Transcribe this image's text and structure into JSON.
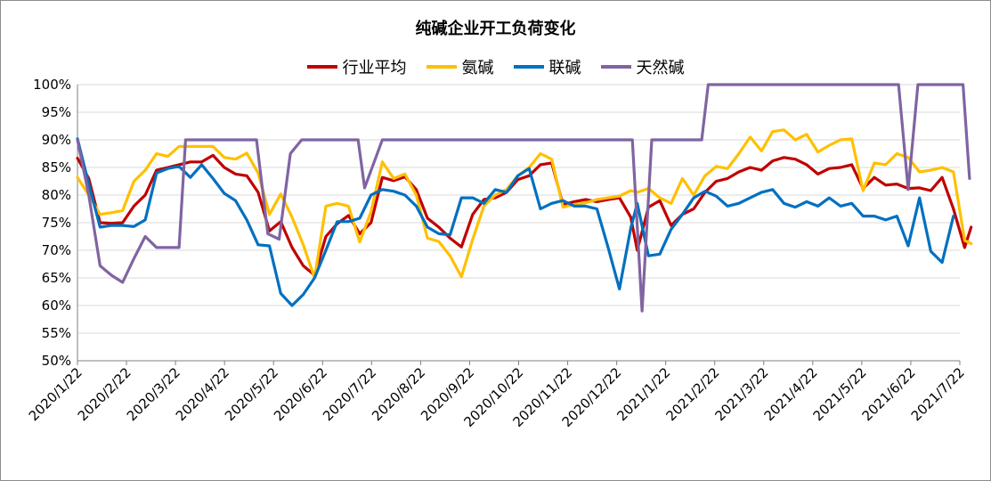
{
  "chart_data": {
    "type": "line",
    "title": "纯碱企业开工负荷变化",
    "xlabel": "",
    "ylabel": "",
    "ylim": [
      0.5,
      1.0
    ],
    "yticks": [
      "50%",
      "55%",
      "60%",
      "65%",
      "70%",
      "75%",
      "80%",
      "85%",
      "90%",
      "95%",
      "100%"
    ],
    "x_start": "2020-01-22",
    "x_end": "2021-07-22",
    "xticks": [
      "2020/1/22",
      "2020/2/22",
      "2020/3/22",
      "2020/4/22",
      "2020/5/22",
      "2020/6/22",
      "2020/7/22",
      "2020/8/22",
      "2020/9/22",
      "2020/10/22",
      "2020/11/22",
      "2020/12/22",
      "2021/1/22",
      "2021/2/22",
      "2021/3/22",
      "2021/4/22",
      "2021/5/22",
      "2021/6/22",
      "2021/7/22"
    ],
    "grid": true,
    "legend_position": "top",
    "series": [
      {
        "name": "行业平均",
        "color": "#c00000",
        "points": [
          [
            "2020-01-22",
            0.867
          ],
          [
            "2020-01-29",
            0.83
          ],
          [
            "2020-02-05",
            0.75
          ],
          [
            "2020-02-12",
            0.749
          ],
          [
            "2020-02-19",
            0.75
          ],
          [
            "2020-02-26",
            0.78
          ],
          [
            "2020-03-04",
            0.8
          ],
          [
            "2020-03-11",
            0.845
          ],
          [
            "2020-03-18",
            0.85
          ],
          [
            "2020-03-25",
            0.855
          ],
          [
            "2020-04-01",
            0.86
          ],
          [
            "2020-04-08",
            0.86
          ],
          [
            "2020-04-15",
            0.872
          ],
          [
            "2020-04-22",
            0.85
          ],
          [
            "2020-04-29",
            0.838
          ],
          [
            "2020-05-06",
            0.835
          ],
          [
            "2020-05-13",
            0.805
          ],
          [
            "2020-05-20",
            0.735
          ],
          [
            "2020-05-27",
            0.752
          ],
          [
            "2020-06-03",
            0.705
          ],
          [
            "2020-06-10",
            0.672
          ],
          [
            "2020-06-17",
            0.655
          ],
          [
            "2020-06-24",
            0.725
          ],
          [
            "2020-07-01",
            0.748
          ],
          [
            "2020-07-08",
            0.763
          ],
          [
            "2020-07-15",
            0.73
          ],
          [
            "2020-07-22",
            0.75
          ],
          [
            "2020-07-29",
            0.832
          ],
          [
            "2020-08-05",
            0.826
          ],
          [
            "2020-08-12",
            0.833
          ],
          [
            "2020-08-19",
            0.81
          ],
          [
            "2020-08-26",
            0.758
          ],
          [
            "2020-09-02",
            0.742
          ],
          [
            "2020-09-09",
            0.722
          ],
          [
            "2020-09-16",
            0.706
          ],
          [
            "2020-09-23",
            0.765
          ],
          [
            "2020-09-30",
            0.792
          ],
          [
            "2020-10-07",
            0.795
          ],
          [
            "2020-10-14",
            0.805
          ],
          [
            "2020-10-21",
            0.828
          ],
          [
            "2020-10-28",
            0.835
          ],
          [
            "2020-11-04",
            0.855
          ],
          [
            "2020-11-11",
            0.858
          ],
          [
            "2020-11-18",
            0.783
          ],
          [
            "2020-11-25",
            0.788
          ],
          [
            "2020-12-02",
            0.792
          ],
          [
            "2020-12-09",
            0.788
          ],
          [
            "2020-12-16",
            0.792
          ],
          [
            "2020-12-23",
            0.795
          ],
          [
            "2020-12-30",
            0.76
          ],
          [
            "2021-01-03",
            0.7
          ],
          [
            "2021-01-10",
            0.778
          ],
          [
            "2021-01-17",
            0.79
          ],
          [
            "2021-01-24",
            0.745
          ],
          [
            "2021-01-31",
            0.765
          ],
          [
            "2021-02-07",
            0.775
          ],
          [
            "2021-02-14",
            0.805
          ],
          [
            "2021-02-21",
            0.825
          ],
          [
            "2021-02-28",
            0.83
          ],
          [
            "2021-03-07",
            0.842
          ],
          [
            "2021-03-14",
            0.85
          ],
          [
            "2021-03-21",
            0.845
          ],
          [
            "2021-03-28",
            0.862
          ],
          [
            "2021-04-04",
            0.868
          ],
          [
            "2021-04-11",
            0.865
          ],
          [
            "2021-04-18",
            0.855
          ],
          [
            "2021-04-25",
            0.838
          ],
          [
            "2021-05-02",
            0.848
          ],
          [
            "2021-05-09",
            0.85
          ],
          [
            "2021-05-16",
            0.855
          ],
          [
            "2021-05-23",
            0.812
          ],
          [
            "2021-05-30",
            0.832
          ],
          [
            "2021-06-06",
            0.818
          ],
          [
            "2021-06-13",
            0.82
          ],
          [
            "2021-06-20",
            0.812
          ],
          [
            "2021-06-27",
            0.813
          ],
          [
            "2021-07-04",
            0.808
          ],
          [
            "2021-07-11",
            0.832
          ],
          [
            "2021-07-18",
            0.775
          ],
          [
            "2021-07-25",
            0.705
          ],
          [
            "2021-07-29",
            0.742
          ]
        ]
      },
      {
        "name": "氨碱",
        "color": "#ffc000",
        "points": [
          [
            "2020-01-22",
            0.832
          ],
          [
            "2020-01-29",
            0.8
          ],
          [
            "2020-02-05",
            0.765
          ],
          [
            "2020-02-12",
            0.768
          ],
          [
            "2020-02-19",
            0.772
          ],
          [
            "2020-02-26",
            0.825
          ],
          [
            "2020-03-04",
            0.845
          ],
          [
            "2020-03-11",
            0.875
          ],
          [
            "2020-03-18",
            0.87
          ],
          [
            "2020-03-25",
            0.888
          ],
          [
            "2020-04-01",
            0.888
          ],
          [
            "2020-04-08",
            0.888
          ],
          [
            "2020-04-15",
            0.888
          ],
          [
            "2020-04-22",
            0.868
          ],
          [
            "2020-04-29",
            0.865
          ],
          [
            "2020-05-06",
            0.876
          ],
          [
            "2020-05-13",
            0.84
          ],
          [
            "2020-05-20",
            0.765
          ],
          [
            "2020-05-27",
            0.802
          ],
          [
            "2020-06-03",
            0.76
          ],
          [
            "2020-06-10",
            0.71
          ],
          [
            "2020-06-17",
            0.65
          ],
          [
            "2020-06-24",
            0.78
          ],
          [
            "2020-07-01",
            0.785
          ],
          [
            "2020-07-08",
            0.78
          ],
          [
            "2020-07-15",
            0.715
          ],
          [
            "2020-07-22",
            0.77
          ],
          [
            "2020-07-29",
            0.86
          ],
          [
            "2020-08-05",
            0.83
          ],
          [
            "2020-08-12",
            0.838
          ],
          [
            "2020-08-19",
            0.8
          ],
          [
            "2020-08-26",
            0.722
          ],
          [
            "2020-09-02",
            0.716
          ],
          [
            "2020-09-09",
            0.69
          ],
          [
            "2020-09-16",
            0.652
          ],
          [
            "2020-09-23",
            0.72
          ],
          [
            "2020-09-30",
            0.78
          ],
          [
            "2020-10-07",
            0.8
          ],
          [
            "2020-10-14",
            0.81
          ],
          [
            "2020-10-21",
            0.835
          ],
          [
            "2020-10-28",
            0.85
          ],
          [
            "2020-11-04",
            0.875
          ],
          [
            "2020-11-11",
            0.865
          ],
          [
            "2020-11-18",
            0.778
          ],
          [
            "2020-11-25",
            0.783
          ],
          [
            "2020-12-02",
            0.786
          ],
          [
            "2020-12-09",
            0.792
          ],
          [
            "2020-12-16",
            0.795
          ],
          [
            "2020-12-23",
            0.798
          ],
          [
            "2020-12-30",
            0.808
          ],
          [
            "2021-01-03",
            0.805
          ],
          [
            "2021-01-10",
            0.812
          ],
          [
            "2021-01-17",
            0.795
          ],
          [
            "2021-01-24",
            0.785
          ],
          [
            "2021-01-31",
            0.83
          ],
          [
            "2021-02-07",
            0.8
          ],
          [
            "2021-02-14",
            0.835
          ],
          [
            "2021-02-21",
            0.852
          ],
          [
            "2021-02-28",
            0.848
          ],
          [
            "2021-03-07",
            0.875
          ],
          [
            "2021-03-14",
            0.905
          ],
          [
            "2021-03-21",
            0.88
          ],
          [
            "2021-03-28",
            0.915
          ],
          [
            "2021-04-04",
            0.918
          ],
          [
            "2021-04-11",
            0.9
          ],
          [
            "2021-04-18",
            0.91
          ],
          [
            "2021-04-25",
            0.878
          ],
          [
            "2021-05-02",
            0.89
          ],
          [
            "2021-05-09",
            0.9
          ],
          [
            "2021-05-16",
            0.902
          ],
          [
            "2021-05-23",
            0.808
          ],
          [
            "2021-05-30",
            0.858
          ],
          [
            "2021-06-06",
            0.855
          ],
          [
            "2021-06-13",
            0.875
          ],
          [
            "2021-06-20",
            0.868
          ],
          [
            "2021-06-27",
            0.842
          ],
          [
            "2021-07-04",
            0.845
          ],
          [
            "2021-07-11",
            0.85
          ],
          [
            "2021-07-18",
            0.842
          ],
          [
            "2021-07-25",
            0.718
          ],
          [
            "2021-07-29",
            0.712
          ]
        ]
      },
      {
        "name": "联碱",
        "color": "#0070c0",
        "points": [
          [
            "2020-01-22",
            0.902
          ],
          [
            "2020-01-29",
            0.82
          ],
          [
            "2020-02-05",
            0.742
          ],
          [
            "2020-02-12",
            0.745
          ],
          [
            "2020-02-19",
            0.745
          ],
          [
            "2020-02-26",
            0.743
          ],
          [
            "2020-03-04",
            0.755
          ],
          [
            "2020-03-11",
            0.84
          ],
          [
            "2020-03-18",
            0.848
          ],
          [
            "2020-03-25",
            0.852
          ],
          [
            "2020-04-01",
            0.832
          ],
          [
            "2020-04-08",
            0.855
          ],
          [
            "2020-04-15",
            0.83
          ],
          [
            "2020-04-22",
            0.803
          ],
          [
            "2020-04-29",
            0.79
          ],
          [
            "2020-05-06",
            0.755
          ],
          [
            "2020-05-13",
            0.71
          ],
          [
            "2020-05-20",
            0.708
          ],
          [
            "2020-05-27",
            0.622
          ],
          [
            "2020-06-03",
            0.6
          ],
          [
            "2020-06-10",
            0.62
          ],
          [
            "2020-06-17",
            0.65
          ],
          [
            "2020-06-24",
            0.7
          ],
          [
            "2020-07-01",
            0.752
          ],
          [
            "2020-07-08",
            0.752
          ],
          [
            "2020-07-15",
            0.758
          ],
          [
            "2020-07-22",
            0.8
          ],
          [
            "2020-07-29",
            0.81
          ],
          [
            "2020-08-05",
            0.807
          ],
          [
            "2020-08-12",
            0.8
          ],
          [
            "2020-08-19",
            0.78
          ],
          [
            "2020-08-26",
            0.742
          ],
          [
            "2020-09-02",
            0.73
          ],
          [
            "2020-09-09",
            0.728
          ],
          [
            "2020-09-16",
            0.795
          ],
          [
            "2020-09-23",
            0.795
          ],
          [
            "2020-09-30",
            0.785
          ],
          [
            "2020-10-07",
            0.81
          ],
          [
            "2020-10-14",
            0.805
          ],
          [
            "2020-10-21",
            0.835
          ],
          [
            "2020-10-28",
            0.848
          ],
          [
            "2020-11-04",
            0.775
          ],
          [
            "2020-11-11",
            0.785
          ],
          [
            "2020-11-18",
            0.79
          ],
          [
            "2020-11-25",
            0.78
          ],
          [
            "2020-12-02",
            0.78
          ],
          [
            "2020-12-09",
            0.775
          ],
          [
            "2020-12-16",
            0.705
          ],
          [
            "2020-12-23",
            0.63
          ],
          [
            "2020-12-30",
            0.74
          ],
          [
            "2021-01-03",
            0.785
          ],
          [
            "2021-01-10",
            0.69
          ],
          [
            "2021-01-17",
            0.693
          ],
          [
            "2021-01-24",
            0.738
          ],
          [
            "2021-01-31",
            0.765
          ],
          [
            "2021-02-07",
            0.795
          ],
          [
            "2021-02-14",
            0.807
          ],
          [
            "2021-02-21",
            0.798
          ],
          [
            "2021-02-28",
            0.78
          ],
          [
            "2021-03-07",
            0.785
          ],
          [
            "2021-03-14",
            0.795
          ],
          [
            "2021-03-21",
            0.805
          ],
          [
            "2021-03-28",
            0.81
          ],
          [
            "2021-04-04",
            0.785
          ],
          [
            "2021-04-11",
            0.778
          ],
          [
            "2021-04-18",
            0.788
          ],
          [
            "2021-04-25",
            0.78
          ],
          [
            "2021-05-02",
            0.795
          ],
          [
            "2021-05-09",
            0.78
          ],
          [
            "2021-05-16",
            0.785
          ],
          [
            "2021-05-23",
            0.762
          ],
          [
            "2021-05-30",
            0.762
          ],
          [
            "2021-06-06",
            0.755
          ],
          [
            "2021-06-13",
            0.762
          ],
          [
            "2021-06-20",
            0.708
          ],
          [
            "2021-06-27",
            0.795
          ],
          [
            "2021-07-04",
            0.698
          ],
          [
            "2021-07-11",
            0.678
          ],
          [
            "2021-07-18",
            0.762
          ]
        ]
      },
      {
        "name": "天然碱",
        "color": "#8064a2",
        "points": [
          [
            "2020-01-22",
            0.9
          ],
          [
            "2020-01-29",
            0.8
          ],
          [
            "2020-02-05",
            0.672
          ],
          [
            "2020-02-12",
            0.655
          ],
          [
            "2020-02-19",
            0.642
          ],
          [
            "2020-02-26",
            0.685
          ],
          [
            "2020-03-04",
            0.725
          ],
          [
            "2020-03-11",
            0.705
          ],
          [
            "2020-03-18",
            0.705
          ],
          [
            "2020-03-25",
            0.705
          ],
          [
            "2020-03-29",
            0.9
          ],
          [
            "2020-05-12",
            0.9
          ],
          [
            "2020-05-19",
            0.73
          ],
          [
            "2020-05-26",
            0.72
          ],
          [
            "2020-06-02",
            0.875
          ],
          [
            "2020-06-09",
            0.9
          ],
          [
            "2020-07-14",
            0.9
          ],
          [
            "2020-07-18",
            0.813
          ],
          [
            "2020-07-29",
            0.9
          ],
          [
            "2020-12-31",
            0.9
          ],
          [
            "2021-01-06",
            0.59
          ],
          [
            "2021-01-12",
            0.9
          ],
          [
            "2021-02-12",
            0.9
          ],
          [
            "2021-02-16",
            1.0
          ],
          [
            "2021-06-14",
            1.0
          ],
          [
            "2021-06-20",
            0.81
          ],
          [
            "2021-06-26",
            1.0
          ],
          [
            "2021-07-24",
            1.0
          ],
          [
            "2021-07-28",
            0.83
          ]
        ]
      }
    ]
  }
}
